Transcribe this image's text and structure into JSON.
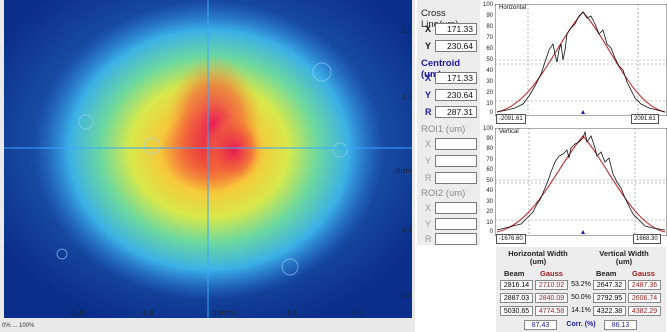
{
  "beam_axes": {
    "x_ticks": [
      "-2.0",
      "-1.0",
      "0(mm)",
      "1.0",
      "2.0"
    ],
    "y_ticks": [
      "2.0",
      "1.0",
      "0(mm)",
      "-1.0",
      "-2.0"
    ],
    "footer": "0% ... 100%"
  },
  "cross_line": {
    "title": "Cross Line(um)",
    "x_label": "X",
    "x": "171.33",
    "y_label": "Y",
    "y": "230.64"
  },
  "centroid": {
    "title": "Centroid (um)",
    "x_label": "X",
    "x": "171.33",
    "y_label": "Y",
    "y": "230.64",
    "r_label": "R",
    "r": "287.31"
  },
  "roi1": {
    "title": "ROI1 (um)",
    "x_label": "X",
    "y_label": "Y",
    "r_label": "R"
  },
  "roi2": {
    "title": "ROI2 (um)",
    "x_label": "X",
    "y_label": "Y",
    "r_label": "R"
  },
  "horizontal_plot": {
    "title": "Horizontal",
    "y_ticks": [
      "100",
      "90",
      "80",
      "70",
      "60",
      "50",
      "40",
      "30",
      "20",
      "10",
      "0"
    ],
    "left_edge": "-2091.61",
    "right_edge": "2091.61"
  },
  "vertical_plot": {
    "title": "Vertical",
    "y_ticks": [
      "100",
      "90",
      "80",
      "70",
      "60",
      "50",
      "40",
      "30",
      "20",
      "10",
      "0"
    ],
    "left_edge": "-1676.60",
    "right_edge": "1668.30"
  },
  "width_table": {
    "h_header": "Horizontal Width (um)",
    "v_header": "Vertical Width (um)",
    "beam_label": "Beam",
    "gauss_label": "Gauss",
    "rows": [
      {
        "h_beam": "2816.14",
        "h_gauss": "2710.02",
        "pct": "53.2%",
        "v_beam": "2647.32",
        "v_gauss": "2487.36"
      },
      {
        "h_beam": "2887.03",
        "h_gauss": "2840.09",
        "pct": "50.0%",
        "v_beam": "2792.95",
        "v_gauss": "2606.74"
      },
      {
        "h_beam": "5030.65",
        "h_gauss": "4774.58",
        "pct": "14.1%",
        "v_beam": "4322.38",
        "v_gauss": "4382.29"
      }
    ],
    "corr_h": "87.43",
    "corr_label": "Corr. (%)",
    "corr_v": "86.13"
  },
  "colors": {
    "accent_blue": "#1a1aa6",
    "gauss_red": "#a01c1c",
    "fit_curve": "#c02020"
  }
}
